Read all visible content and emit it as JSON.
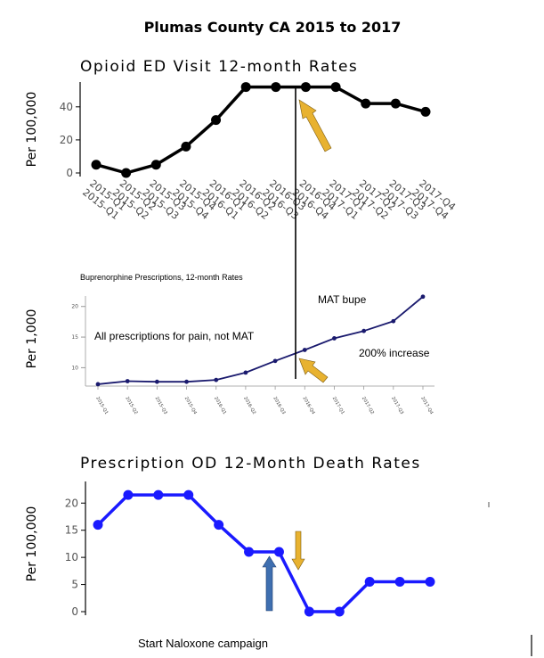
{
  "title": "Plumas County CA 2015 to 2017",
  "chart_data": [
    {
      "type": "line",
      "title": "Opioid ED Visit 12-month Rates",
      "ylabel": "Per 100,000",
      "ylim": [
        0,
        55
      ],
      "yticks": [
        0,
        20,
        40
      ],
      "categories": [
        "2015-Q1",
        "2015-Q2",
        "2015-Q3",
        "2015-Q4",
        "2016-Q1",
        "2016-Q2",
        "2016-Q3",
        "2016-Q4",
        "2017-Q1",
        "2017-Q2",
        "2017-Q3",
        "2017-Q4"
      ],
      "values": [
        5,
        0,
        5,
        16,
        32,
        52,
        52,
        52,
        52,
        42,
        42,
        37
      ],
      "color": "#000000"
    },
    {
      "type": "line",
      "title": "Buprenorphine Prescriptions, 12-month Rates",
      "ylabel": "Per 1,000",
      "ylim": [
        7,
        22
      ],
      "yticks": [
        10,
        15,
        20
      ],
      "categories": [
        "2015-Q1",
        "2015-Q2",
        "2015-Q3",
        "2015-Q4",
        "2016-Q1",
        "2016-Q2",
        "2016-Q3",
        "2016-Q4",
        "2017-Q1",
        "2017-Q2",
        "2017-Q3",
        "2017-Q4"
      ],
      "values": [
        7.3,
        7.8,
        7.7,
        7.7,
        8.0,
        9.2,
        11.1,
        12.9,
        14.8,
        16.0,
        17.6,
        21.6
      ],
      "color": "#1a1a6e",
      "annotations": [
        "MAT bupe",
        "All prescriptions for pain, not MAT",
        "200% increase"
      ]
    },
    {
      "type": "line",
      "title": "Prescription OD 12-Month Death Rates",
      "ylabel": "Per 100,000",
      "ylim": [
        0,
        23
      ],
      "yticks": [
        0,
        5,
        10,
        15,
        20
      ],
      "values": [
        16,
        21.5,
        21.5,
        21.5,
        16,
        11,
        11,
        0,
        0,
        5.5,
        5.5,
        5.5
      ],
      "color": "#1a1aff"
    }
  ],
  "footer": {
    "note": "Start Naloxone campaign"
  },
  "colors": {
    "arrow_gold": "#e8b230",
    "arrow_blue": "#3f6fb0"
  }
}
